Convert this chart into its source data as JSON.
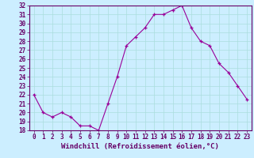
{
  "x": [
    0,
    1,
    2,
    3,
    4,
    5,
    6,
    7,
    8,
    9,
    10,
    11,
    12,
    13,
    14,
    15,
    16,
    17,
    18,
    19,
    20,
    21,
    22,
    23
  ],
  "y": [
    22,
    20,
    19.5,
    20,
    19.5,
    18.5,
    18.5,
    18,
    21,
    24,
    27.5,
    28.5,
    29.5,
    31,
    31,
    31.5,
    32,
    29.5,
    28,
    27.5,
    25.5,
    24.5,
    23,
    21.5
  ],
  "line_color": "#990099",
  "marker": "+",
  "background_color": "#cceeff",
  "grid_color": "#aadddd",
  "xlabel": "Windchill (Refroidissement éolien,°C)",
  "xlabel_fontsize": 6.5,
  "tick_fontsize": 5.5,
  "ylim": [
    18,
    32
  ],
  "yticks": [
    18,
    19,
    20,
    21,
    22,
    23,
    24,
    25,
    26,
    27,
    28,
    29,
    30,
    31,
    32
  ],
  "xlim": [
    -0.5,
    23.5
  ],
  "xticks": [
    0,
    1,
    2,
    3,
    4,
    5,
    6,
    7,
    8,
    9,
    10,
    11,
    12,
    13,
    14,
    15,
    16,
    17,
    18,
    19,
    20,
    21,
    22,
    23
  ],
  "axis_color": "#660066",
  "spine_color": "#660066"
}
